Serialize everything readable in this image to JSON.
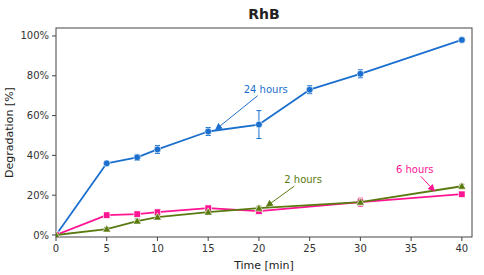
{
  "chart_data": {
    "type": "line",
    "title": "RhB",
    "x_label": "Time [min]",
    "y_label": "Degradation [%]",
    "xlim": [
      0,
      41
    ],
    "ylim": [
      -0.01,
      1.04
    ],
    "xticks": [
      0,
      5,
      10,
      15,
      20,
      25,
      30,
      35,
      40
    ],
    "yticks": [
      {
        "value": 0,
        "label": "0%"
      },
      {
        "value": 0.2,
        "label": "20%"
      },
      {
        "value": 0.4,
        "label": "40%"
      },
      {
        "value": 0.6,
        "label": "60%"
      },
      {
        "value": 0.8,
        "label": "80%"
      },
      {
        "value": 1.0,
        "label": "100%"
      }
    ],
    "series": [
      {
        "color": "#1a6fce",
        "marker": "circle",
        "x": [
          0,
          5,
          8,
          10,
          15,
          20,
          25,
          30,
          40
        ],
        "values": [
          0,
          0.36,
          0.39,
          0.43,
          0.52,
          0.555,
          0.73,
          0.81,
          0.98
        ],
        "errors": [
          0,
          0.01,
          0.015,
          0.02,
          0.02,
          0.07,
          0.02,
          0.02,
          0.01
        ]
      },
      {
        "color": "#ff1493",
        "marker": "square",
        "x": [
          0,
          5,
          8,
          10,
          15,
          20,
          30,
          40
        ],
        "values": [
          0,
          0.1,
          0.105,
          0.115,
          0.135,
          0.12,
          0.165,
          0.205
        ],
        "errors": [
          0,
          0.012,
          0.005,
          0.005,
          0.01,
          0.005,
          0.02,
          0.01
        ]
      },
      {
        "color": "#5a7a10",
        "marker": "triangle",
        "x": [
          0,
          5,
          8,
          10,
          15,
          20,
          30,
          40
        ],
        "values": [
          0,
          0.03,
          0.07,
          0.09,
          0.115,
          0.135,
          0.165,
          0.245
        ],
        "errors": [
          0,
          0.008,
          0.01,
          0.01,
          0.01,
          0.01,
          0.01,
          0.01
        ]
      }
    ],
    "annotations": [
      {
        "text": "24 hours",
        "x": 15.5,
        "y": 0.52,
        "text_x": 18.5,
        "text_y": 0.7,
        "color": "#1a6fce"
      },
      {
        "text": "2 hours",
        "x": 20.5,
        "y": 0.135,
        "text_x": 22.5,
        "text_y": 0.245,
        "color": "#5a7a10"
      },
      {
        "text": "6 hours",
        "x": 37.5,
        "y": 0.21,
        "text_x": 33.5,
        "text_y": 0.295,
        "color": "#ff1493"
      }
    ]
  }
}
